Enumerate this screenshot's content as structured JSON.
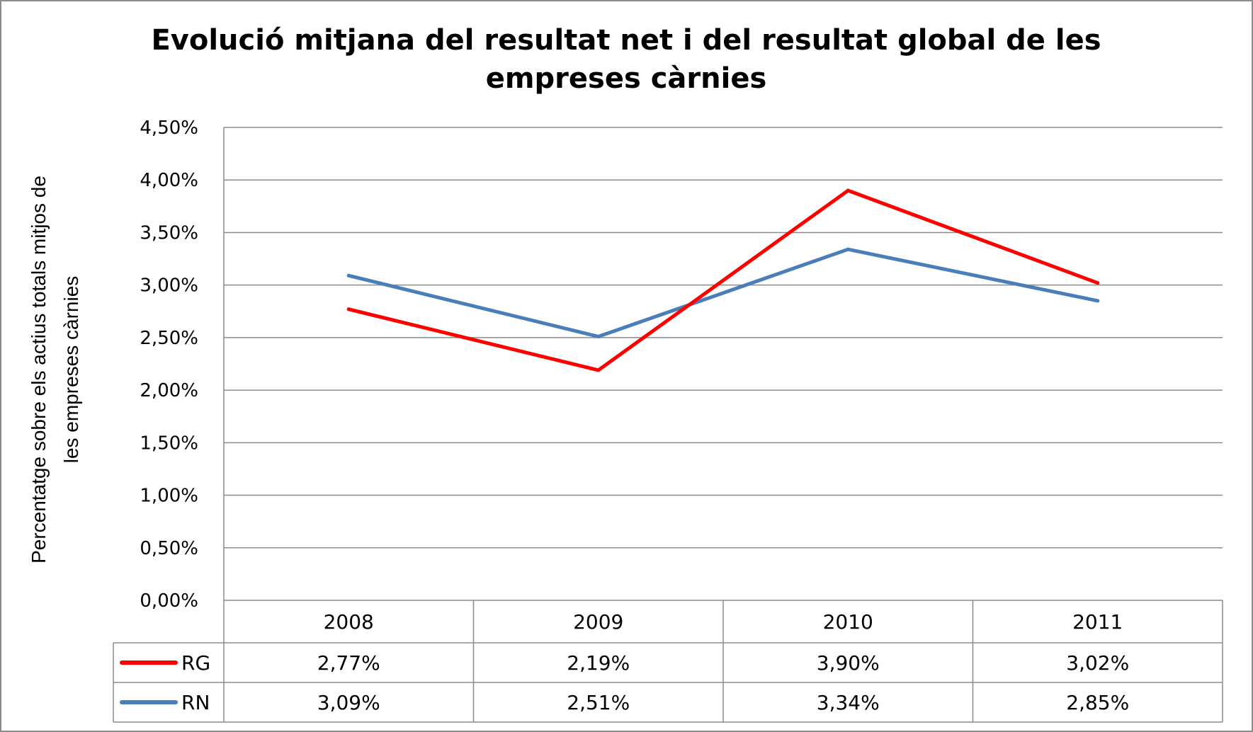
{
  "chart_data": {
    "type": "line",
    "title": "Evolució mitjana del resultat net i del resultat global de les empreses càrnies",
    "title_lines": [
      "Evolució mitjana del resultat net i del resultat global de les",
      "empreses càrnies"
    ],
    "xlabel": "",
    "ylabel": "Percentatge sobre els actius totals mitjos de les empreses càrnies",
    "ylabel_lines": [
      "Percentatge sobre els actius totals mitjos de",
      "les empreses càrnies"
    ],
    "categories": [
      "2008",
      "2009",
      "2010",
      "2011"
    ],
    "ylim": [
      0,
      4.5
    ],
    "yticks": [
      0,
      0.5,
      1.0,
      1.5,
      2.0,
      2.5,
      3.0,
      3.5,
      4.0,
      4.5
    ],
    "ytick_labels": [
      "0,00%",
      "0,50%",
      "1,00%",
      "1,50%",
      "2,00%",
      "2,50%",
      "3,00%",
      "3,50%",
      "4,00%",
      "4,50%"
    ],
    "grid": true,
    "legend": "data-table",
    "series": [
      {
        "name": "RG",
        "color": "#ff0000",
        "values": [
          2.77,
          2.19,
          3.9,
          3.02
        ],
        "labels": [
          "2,77%",
          "2,19%",
          "3,90%",
          "3,02%"
        ]
      },
      {
        "name": "RN",
        "color": "#4a7ebb",
        "values": [
          3.09,
          2.51,
          3.34,
          2.85
        ],
        "labels": [
          "3,09%",
          "2,51%",
          "3,34%",
          "2,85%"
        ]
      }
    ]
  }
}
